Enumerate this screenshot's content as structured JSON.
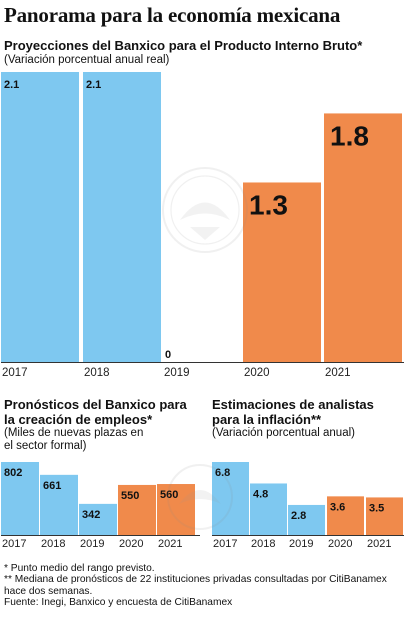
{
  "title": "Panorama para la economía mexicana",
  "colors": {
    "hist": "#7ec8f0",
    "proj": "#f08a4b",
    "axis": "#333333",
    "label": "#111111"
  },
  "charts": {
    "gdp": {
      "title": "Proyecciones del Banxico para el Producto Interno Bruto*",
      "note": "(Variación porcentual anual real)"
    },
    "employment": {
      "title": "Pronósticos del Banxico para la creación de empleos*",
      "note": "(Miles de nuevas plazas en el sector formal)"
    },
    "inflation": {
      "title": "Estimaciones de analistas para la inflación**",
      "note": "(Variación porcentual anual)"
    }
  },
  "chart_data": [
    {
      "type": "bar",
      "title": "Proyecciones del Banxico para el Producto Interno Bruto*",
      "subtitle": "(Variación porcentual anual real)",
      "categories": [
        "2017",
        "2018",
        "2019",
        "2020",
        "2021"
      ],
      "values": [
        2.1,
        2.1,
        0,
        1.3,
        1.8
      ],
      "labels": [
        "2.1",
        "2.1",
        "0",
        "1.3",
        "1.8"
      ],
      "kinds": [
        "hist",
        "hist",
        "hist",
        "proj",
        "proj"
      ],
      "ylim": [
        0,
        2.1
      ],
      "xlabel": "",
      "ylabel": ""
    },
    {
      "type": "bar",
      "title": "Pronósticos del Banxico para la creación de empleos*",
      "subtitle": "(Miles de nuevas plazas en el sector formal)",
      "categories": [
        "2017",
        "2018",
        "2019",
        "2020",
        "2021"
      ],
      "values": [
        802,
        661,
        342,
        550,
        560
      ],
      "labels": [
        "802",
        "661",
        "342",
        "550",
        "560"
      ],
      "kinds": [
        "hist",
        "hist",
        "hist",
        "proj",
        "proj"
      ],
      "ylim": [
        0,
        802
      ],
      "xlabel": "",
      "ylabel": ""
    },
    {
      "type": "bar",
      "title": "Estimaciones de analistas para la inflación**",
      "subtitle": "(Variación porcentual anual)",
      "categories": [
        "2017",
        "2018",
        "2019",
        "2020",
        "2021"
      ],
      "values": [
        6.8,
        4.8,
        2.8,
        3.6,
        3.5
      ],
      "labels": [
        "6.8",
        "4.8",
        "2.8",
        "3.6",
        "3.5"
      ],
      "kinds": [
        "hist",
        "hist",
        "hist",
        "proj",
        "proj"
      ],
      "ylim": [
        0,
        6.8
      ],
      "xlabel": "",
      "ylabel": ""
    }
  ],
  "footnotes": {
    "note1": "* Punto medio del rango previsto.",
    "note2": "** Mediana de pronósticos de 22 instituciones privadas consultadas por CitiBanamex hace dos semanas.",
    "source": "Fuente: Inegi, Banxico y encuesta de CitiBanamex"
  }
}
